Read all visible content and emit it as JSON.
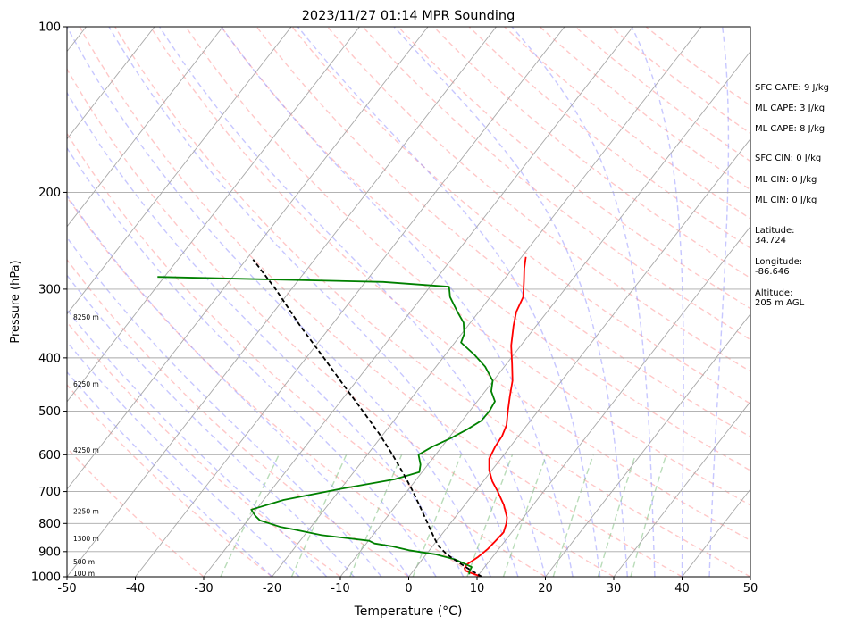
{
  "chart_data": {
    "type": "line",
    "title": "2023/11/27 01:14 MPR Sounding",
    "xlabel": "Temperature (°C)",
    "ylabel": "Pressure (hPa)",
    "xlim": [
      -50,
      50
    ],
    "ylim": [
      1000,
      100
    ],
    "y_scale": "log",
    "x_ticks": [
      -50,
      -40,
      -30,
      -20,
      -10,
      0,
      10,
      20,
      30,
      40,
      50
    ],
    "y_ticks": [
      100,
      200,
      300,
      400,
      500,
      600,
      700,
      800,
      900,
      1000
    ],
    "grid": true,
    "series": [
      {
        "label": "temperature",
        "color": "#ff0000",
        "points": [
          [
            1000,
            10.7
          ],
          [
            985,
            8.8
          ],
          [
            975,
            7.6
          ],
          [
            965,
            7.2
          ],
          [
            950,
            7.1
          ],
          [
            920,
            7.9
          ],
          [
            890,
            8.4
          ],
          [
            860,
            8.6
          ],
          [
            830,
            8.8
          ],
          [
            800,
            8.2
          ],
          [
            780,
            7.6
          ],
          [
            740,
            5.7
          ],
          [
            700,
            3.3
          ],
          [
            670,
            1.3
          ],
          [
            640,
            -0.4
          ],
          [
            610,
            -1.7
          ],
          [
            580,
            -2.2
          ],
          [
            555,
            -2.4
          ],
          [
            530,
            -3.0
          ],
          [
            500,
            -4.4
          ],
          [
            470,
            -5.8
          ],
          [
            440,
            -7.2
          ],
          [
            410,
            -9.2
          ],
          [
            380,
            -11.4
          ],
          [
            350,
            -13.3
          ],
          [
            330,
            -14.5
          ],
          [
            310,
            -15.2
          ],
          [
            290,
            -16.9
          ],
          [
            275,
            -18.3
          ],
          [
            262,
            -19.4
          ]
        ]
      },
      {
        "label": "dewpoint",
        "color": "#008000",
        "points": [
          [
            990,
            8.6
          ],
          [
            980,
            8.3
          ],
          [
            960,
            8.1
          ],
          [
            945,
            6.5
          ],
          [
            930,
            4.8
          ],
          [
            910,
            1.3
          ],
          [
            895,
            -3.0
          ],
          [
            880,
            -6.0
          ],
          [
            870,
            -8.8
          ],
          [
            860,
            -9.9
          ],
          [
            840,
            -17.5
          ],
          [
            820,
            -22.3
          ],
          [
            812,
            -24.4
          ],
          [
            790,
            -28.2
          ],
          [
            775,
            -29.4
          ],
          [
            755,
            -30.7
          ],
          [
            725,
            -27.1
          ],
          [
            690,
            -19.5
          ],
          [
            665,
            -13.2
          ],
          [
            645,
            -10.4
          ],
          [
            625,
            -11.1
          ],
          [
            600,
            -12.5
          ],
          [
            580,
            -11.4
          ],
          [
            560,
            -9.7
          ],
          [
            540,
            -8.3
          ],
          [
            520,
            -7.2
          ],
          [
            500,
            -7.1
          ],
          [
            480,
            -7.4
          ],
          [
            460,
            -9.1
          ],
          [
            440,
            -10.1
          ],
          [
            415,
            -12.8
          ],
          [
            395,
            -15.7
          ],
          [
            375,
            -19.1
          ],
          [
            362,
            -19.6
          ],
          [
            345,
            -21.0
          ],
          [
            330,
            -23.1
          ],
          [
            310,
            -25.9
          ],
          [
            297,
            -27.2
          ],
          [
            291,
            -37.4
          ],
          [
            285,
            -71.0
          ]
        ]
      },
      {
        "label": "parcel",
        "color": "#000000",
        "dashed": true,
        "points": [
          [
            1000,
            10.7
          ],
          [
            970,
            8.1
          ],
          [
            940,
            5.5
          ],
          [
            910,
            3.0
          ],
          [
            880,
            0.9
          ],
          [
            850,
            -0.7
          ],
          [
            800,
            -3.3
          ],
          [
            750,
            -6.1
          ],
          [
            700,
            -9.1
          ],
          [
            650,
            -12.5
          ],
          [
            600,
            -16.3
          ],
          [
            550,
            -20.6
          ],
          [
            500,
            -25.6
          ],
          [
            450,
            -31.2
          ],
          [
            400,
            -37.4
          ],
          [
            350,
            -44.5
          ],
          [
            300,
            -52.3
          ],
          [
            265,
            -59.0
          ]
        ]
      }
    ],
    "height_labels": [
      {
        "label": "100 m",
        "p": 988
      },
      {
        "label": "500 m",
        "p": 942
      },
      {
        "label": "1300 m",
        "p": 855
      },
      {
        "label": "2250 m",
        "p": 762
      },
      {
        "label": "4250 m",
        "p": 590
      },
      {
        "label": "6250 m",
        "p": 448
      },
      {
        "label": "8250 m",
        "p": 338
      }
    ],
    "annotations": [
      "SFC CAPE: 9 J/kg",
      "ML CAPE: 3 J/kg",
      "ML CAPE: 8 J/kg",
      "SFC CIN: 0 J/kg",
      "ML CIN: 0 J/kg",
      "ML CIN: 0 J/kg",
      "Latitude:\n34.724",
      "Longitude:\n-86.646",
      "Altitude:\n205 m AGL"
    ]
  }
}
